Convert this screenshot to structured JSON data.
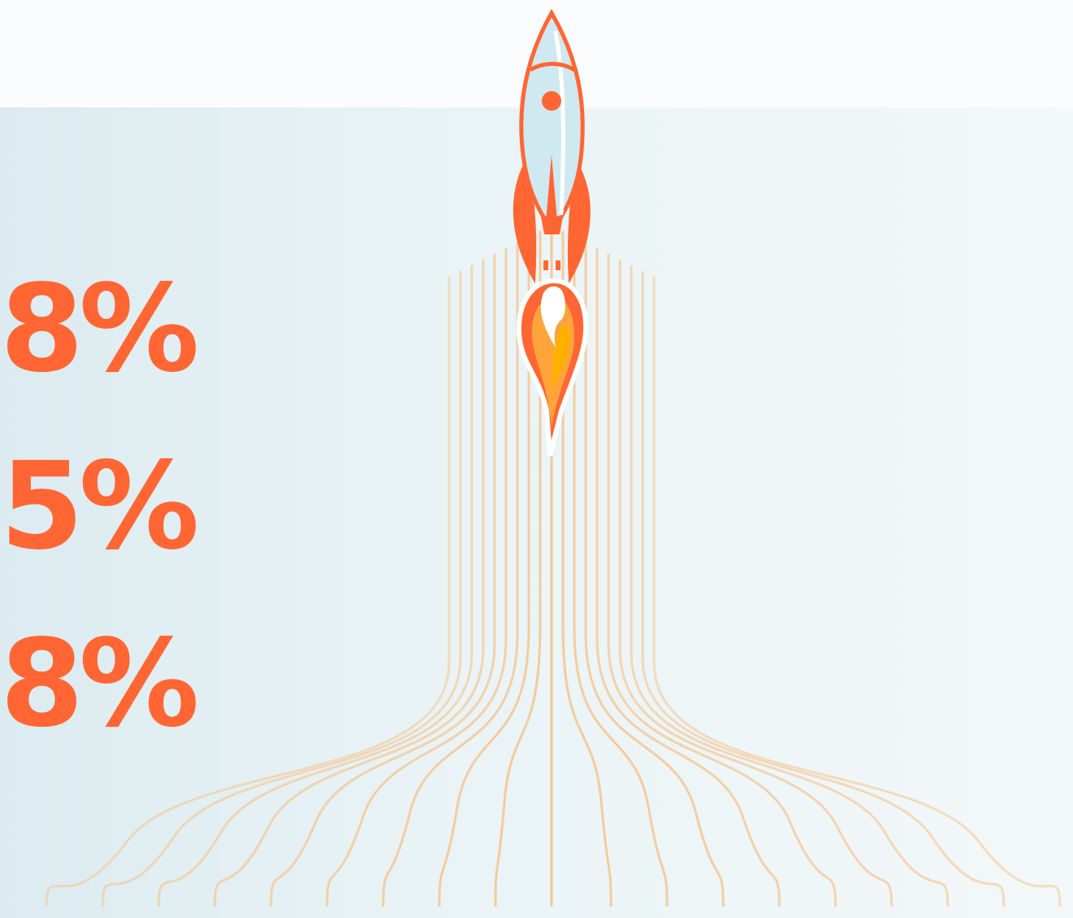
{
  "colors": {
    "accent": "#ff6633",
    "rocket_body": "#cfe9f1",
    "flame_mid": "#ffa43a",
    "flame_core": "#ffb000",
    "trail": "#f4c48e",
    "panel_left": "#dcebf0",
    "panel_right": "#f3f8f9"
  },
  "stats": [
    {
      "value": "8%"
    },
    {
      "value": "5%"
    },
    {
      "value": "8%"
    }
  ],
  "illustration": {
    "icon": "rocket-icon",
    "exhaust": "flame-icon",
    "trail": "exhaust-trail-lines"
  }
}
